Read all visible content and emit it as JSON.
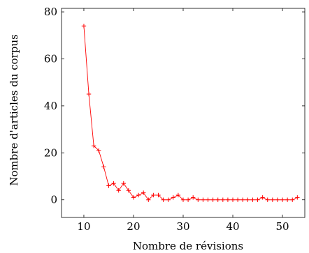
{
  "chart_data": {
    "type": "line",
    "title": "",
    "xlabel": "Nombre de révisions",
    "ylabel": "Nombre d'articles du corpus",
    "xlim": [
      5.5,
      54.5
    ],
    "ylim": [
      -7.5,
      81.5
    ],
    "xticks": [
      10,
      20,
      30,
      40,
      50
    ],
    "yticks": [
      0,
      20,
      40,
      60,
      80
    ],
    "grid": false,
    "legend": "none",
    "series": [
      {
        "color": "#ff0000",
        "marker": "plus",
        "x": [
          10,
          11,
          12,
          13,
          14,
          15,
          16,
          17,
          18,
          19,
          20,
          21,
          22,
          23,
          24,
          25,
          26,
          27,
          28,
          29,
          30,
          31,
          32,
          33,
          34,
          35,
          36,
          37,
          38,
          39,
          40,
          41,
          42,
          43,
          44,
          45,
          46,
          47,
          48,
          49,
          50,
          51,
          52,
          53
        ],
        "y": [
          74,
          45,
          23,
          21,
          14,
          6,
          7,
          4,
          7,
          4,
          1,
          2,
          3,
          0,
          2,
          2,
          0,
          0,
          1,
          2,
          0,
          0,
          1,
          0,
          0,
          0,
          0,
          0,
          0,
          0,
          0,
          0,
          0,
          0,
          0,
          0,
          1,
          0,
          0,
          0,
          0,
          0,
          0,
          1
        ]
      }
    ]
  }
}
